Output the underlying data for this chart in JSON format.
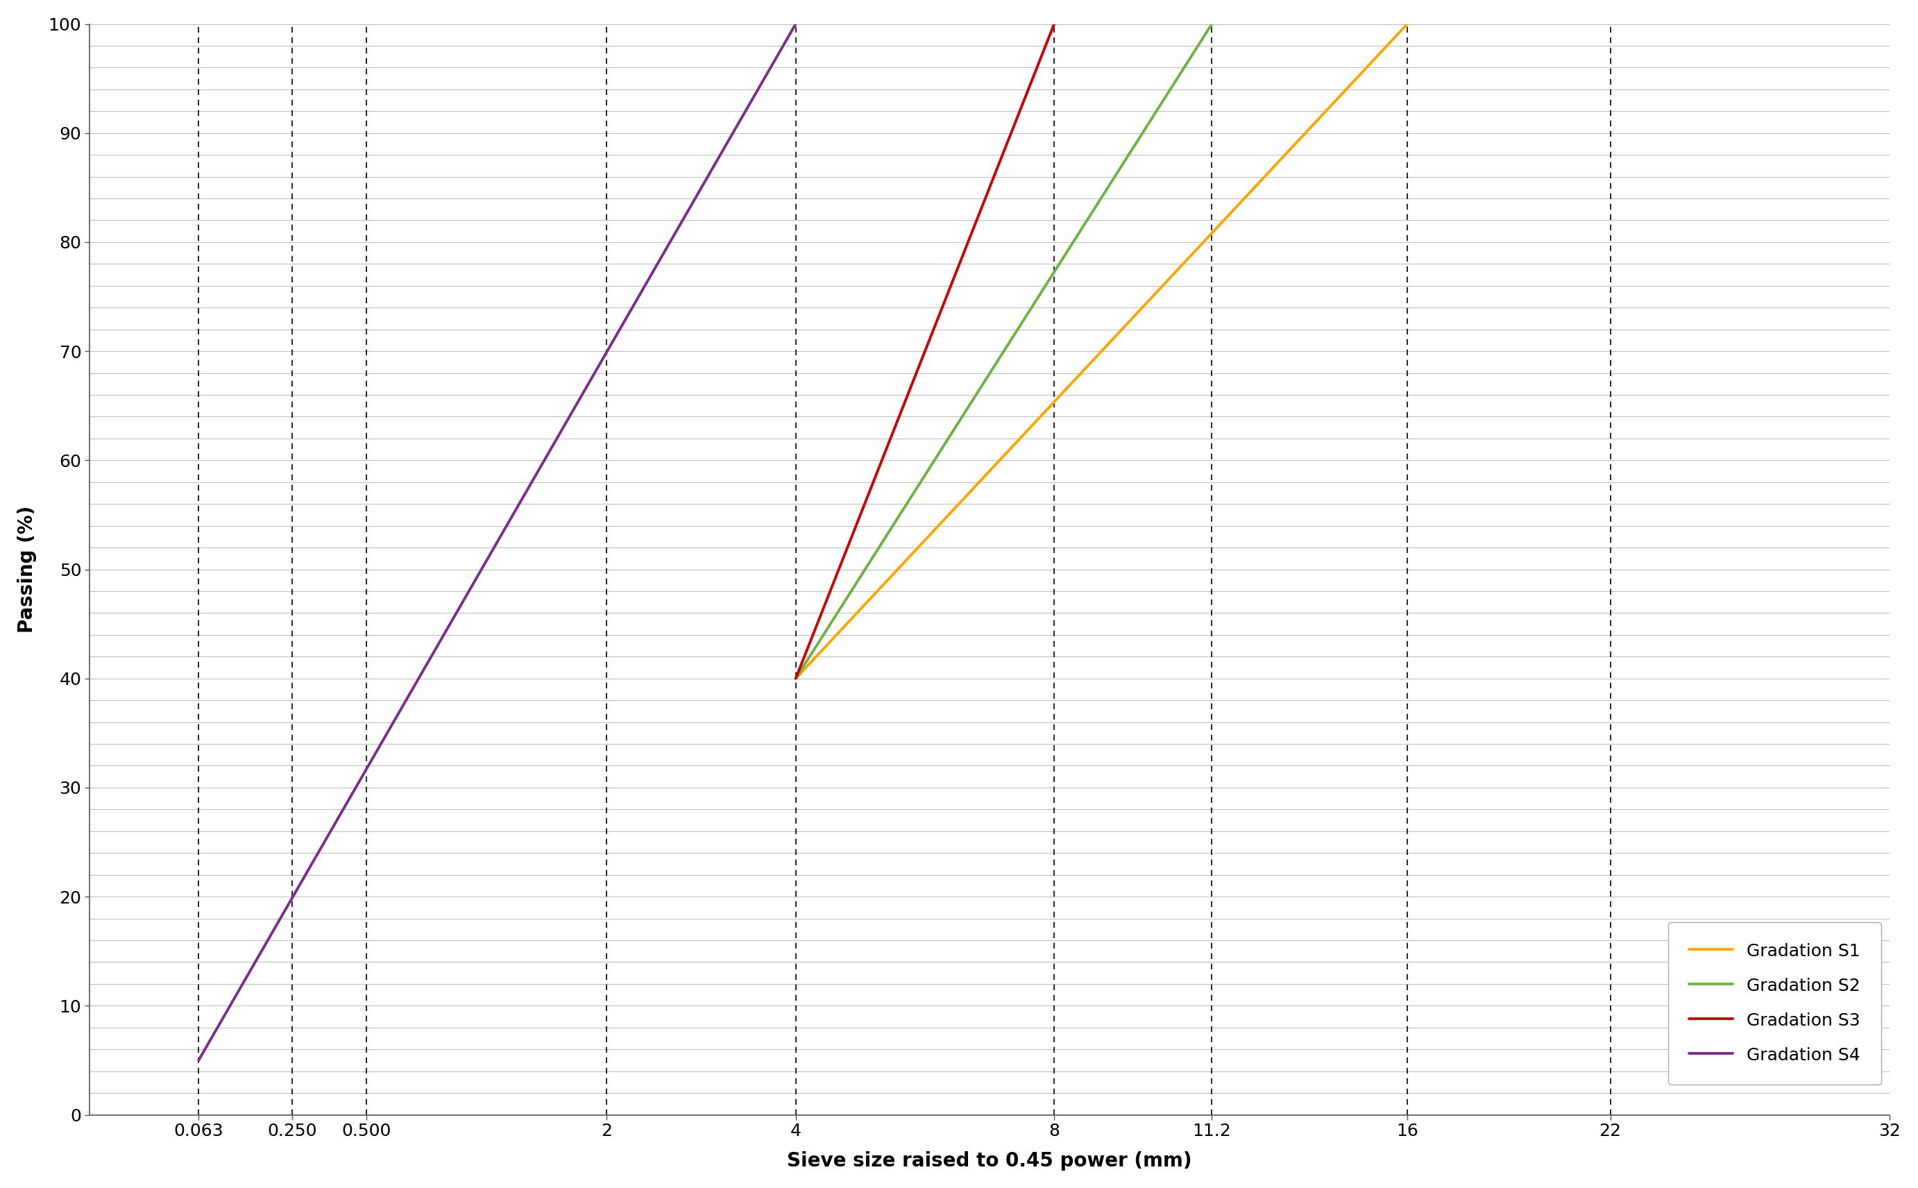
{
  "sieve_sizes_mm": [
    0.063,
    0.25,
    0.5,
    2,
    4,
    8,
    11.2,
    16,
    22,
    32
  ],
  "xtick_labels": [
    "0.063",
    "0.250",
    "0.500",
    "2",
    "4",
    "8",
    "11.2",
    "16",
    "22",
    "32"
  ],
  "ytick_values": [
    0,
    10,
    20,
    30,
    40,
    50,
    60,
    70,
    80,
    90,
    100
  ],
  "power": 0.45,
  "xlabel": "Sieve size raised to 0.45 power (mm)",
  "ylabel": "Passing (%)",
  "curves": {
    "S1": {
      "color": "#FFA500",
      "label": "Gradation S1",
      "points_mm": [
        4,
        16
      ],
      "points_pct": [
        40,
        100
      ]
    },
    "S2": {
      "color": "#6DB33F",
      "label": "Gradation S2",
      "points_mm": [
        4,
        11.2
      ],
      "points_pct": [
        40,
        100
      ]
    },
    "S3": {
      "color": "#CC0000",
      "label": "Gradation S3",
      "points_mm": [
        4,
        8
      ],
      "points_pct": [
        40,
        100
      ]
    },
    "S4": {
      "color": "#7B2D8B",
      "label": "Gradation S4",
      "points_mm": [
        0.063,
        4
      ],
      "points_pct": [
        5,
        100
      ]
    }
  },
  "xlim_mm_max": 32.0,
  "ylim": [
    0,
    100
  ],
  "background_color": "#FFFFFF",
  "hgrid_color": "#BBBBBB",
  "hgrid_linewidth": 0.7,
  "hgrid_step": 2,
  "vline_color": "#000000",
  "vline_linewidth": 1.2,
  "dashed_vlines_mm": [
    0.063,
    0.25,
    0.5,
    2,
    4,
    8,
    11.2,
    16,
    22
  ],
  "label_fontsize": 20,
  "tick_fontsize": 18,
  "legend_fontsize": 18,
  "line_width": 2.8,
  "spine_color": "#555555"
}
